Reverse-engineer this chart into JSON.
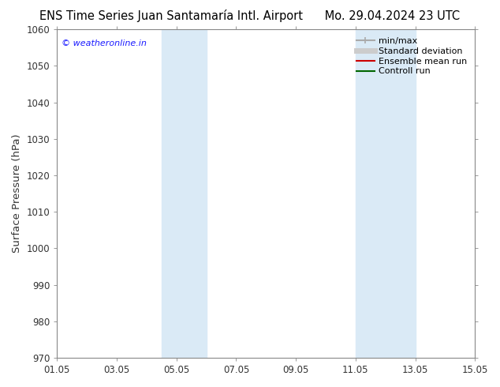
{
  "title_left": "ENS Time Series Juan Santamaría Intl. Airport",
  "title_right": "Mo. 29.04.2024 23 UTC",
  "ylabel": "Surface Pressure (hPa)",
  "ylim": [
    970,
    1060
  ],
  "yticks": [
    970,
    980,
    990,
    1000,
    1010,
    1020,
    1030,
    1040,
    1050,
    1060
  ],
  "xtick_labels": [
    "01.05",
    "03.05",
    "05.05",
    "07.05",
    "09.05",
    "11.05",
    "13.05",
    "15.05"
  ],
  "xtick_positions": [
    0,
    2,
    4,
    6,
    8,
    10,
    12,
    14
  ],
  "xlim": [
    0,
    14
  ],
  "shaded_bands": [
    {
      "x_start": 3.5,
      "x_mid": 4.0,
      "x_end": 5.0
    },
    {
      "x_start": 10.0,
      "x_mid": 10.5,
      "x_end": 12.0
    }
  ],
  "shaded_color": "#daeaf6",
  "watermark": "© weatheronline.in",
  "watermark_color": "#1a1aff",
  "legend_items": [
    {
      "label": "min/max",
      "color": "#aaaaaa",
      "lw": 1.5
    },
    {
      "label": "Standard deviation",
      "color": "#cccccc",
      "lw": 5
    },
    {
      "label": "Ensemble mean run",
      "color": "#cc0000",
      "lw": 1.5
    },
    {
      "label": "Controll run",
      "color": "#006600",
      "lw": 1.5
    }
  ],
  "bg_color": "#ffffff",
  "spine_color": "#888888",
  "tick_color": "#333333",
  "title_fontsize": 10.5,
  "tick_fontsize": 8.5,
  "label_fontsize": 9.5,
  "watermark_fontsize": 8,
  "legend_fontsize": 8
}
